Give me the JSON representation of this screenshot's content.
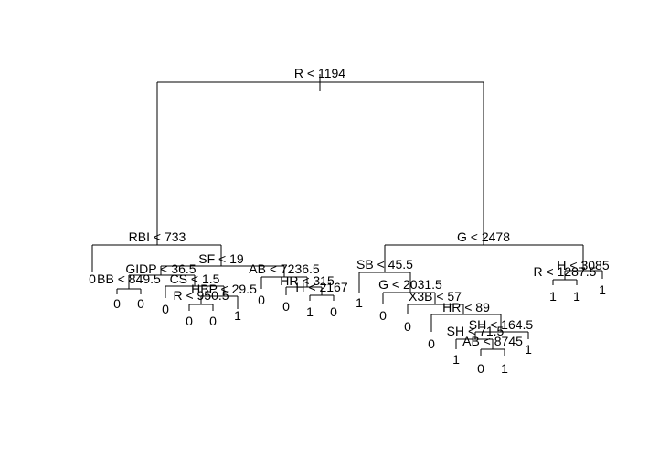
{
  "diagram": {
    "type": "decision-tree",
    "colors": {
      "line": "#000000",
      "text": "#000000",
      "background": "#ffffff"
    },
    "splits": {
      "root": "R < 1194",
      "rbi": "RBI < 733",
      "sf": "SF < 19",
      "gidp": "GIDP < 36.5",
      "bb": "BB < 849.5",
      "cs": "CS < 1.5",
      "hbp": "HBP < 29.5",
      "r950": "R < 950.5",
      "ab7236": "AB < 7236.5",
      "hr315": "HR < 315",
      "h2167": "H < 2167",
      "g2478": "G < 2478",
      "sb": "SB < 45.5",
      "g2031": "G < 2031.5",
      "x3b": "X3B < 57",
      "hr89": "HR < 89",
      "sh164": "SH < 164.5",
      "sh71": "SH < 71.5",
      "ab8745": "AB < 8745",
      "h3085": "H < 3085",
      "r1287": "R < 1287.5"
    },
    "leaves": {
      "rbi_left": "0",
      "bb_left": "0",
      "bb_right": "0",
      "cs_left": "0",
      "r950_left": "0",
      "r950_right": "0",
      "hbp_right": "1",
      "ab7236_left": "0",
      "hr315_left": "0",
      "h2167_left": "1",
      "h2167_right": "0",
      "sb_left": "1",
      "g2031_left": "0",
      "x3b_left": "0",
      "hr89_left": "0",
      "sh71_left": "1",
      "ab8745_left": "0",
      "ab8745_right": "1",
      "sh164_right": "1",
      "r1287_left": "1",
      "r1287_right": "1",
      "h3085_right": "1"
    }
  }
}
